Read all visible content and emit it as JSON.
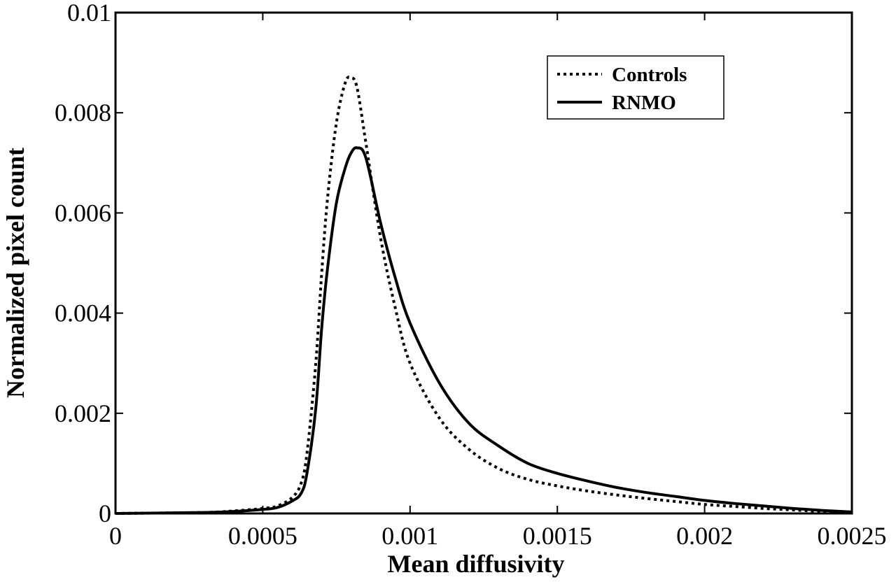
{
  "chart_data": {
    "type": "line",
    "title": "",
    "xlabel": "Mean diffusivity",
    "ylabel": "Normalized pixel count",
    "xlim": [
      0,
      0.0025
    ],
    "ylim": [
      0,
      0.01
    ],
    "xticks": [
      0,
      0.0005,
      0.001,
      0.0015,
      0.002,
      0.0025
    ],
    "xtick_labels": [
      "0",
      "0.0005",
      "0.001",
      "0.0015",
      "0.002",
      "0.0025"
    ],
    "yticks": [
      0,
      0.002,
      0.004,
      0.006,
      0.008,
      0.01
    ],
    "ytick_labels": [
      "0",
      "0.002",
      "0.004",
      "0.006",
      "0.008",
      "0.01"
    ],
    "grid": false,
    "legend_position": "top-right",
    "series": [
      {
        "name": "Controls",
        "style": "dotted",
        "color": "#000000",
        "x": [
          0,
          0.0003,
          0.0004,
          0.0005,
          0.00055,
          0.0006,
          0.00063,
          0.00065,
          0.00068,
          0.0007,
          0.00072,
          0.00075,
          0.00078,
          0.0008,
          0.00082,
          0.00085,
          0.0009,
          0.00095,
          0.001,
          0.0011,
          0.0012,
          0.0013,
          0.0014,
          0.0015,
          0.0016,
          0.0017,
          0.0018,
          0.0019,
          0.002,
          0.0021,
          0.0022,
          0.0023,
          0.0024,
          0.0025
        ],
        "values": [
          0,
          2e-05,
          5e-05,
          0.0001,
          0.00015,
          0.00032,
          0.0006,
          0.0012,
          0.003,
          0.0048,
          0.0063,
          0.0078,
          0.0086,
          0.0087,
          0.0085,
          0.0074,
          0.0055,
          0.0041,
          0.003,
          0.0019,
          0.00128,
          0.0009,
          0.00068,
          0.00055,
          0.00045,
          0.00037,
          0.0003,
          0.00024,
          0.00018,
          0.00014,
          0.0001,
          7e-05,
          4e-05,
          2e-05
        ]
      },
      {
        "name": "RNMO",
        "style": "solid",
        "color": "#000000",
        "x": [
          0,
          0.0003,
          0.0004,
          0.0005,
          0.00055,
          0.0006,
          0.00063,
          0.00065,
          0.00068,
          0.0007,
          0.00072,
          0.00075,
          0.00078,
          0.0008,
          0.00082,
          0.00085,
          0.0009,
          0.00095,
          0.001,
          0.0011,
          0.0012,
          0.0013,
          0.0014,
          0.0015,
          0.0016,
          0.0017,
          0.0018,
          0.0019,
          0.002,
          0.0021,
          0.0022,
          0.0023,
          0.0024,
          0.0025
        ],
        "values": [
          0,
          2e-05,
          4e-05,
          8e-05,
          0.00012,
          0.00025,
          0.0004,
          0.0008,
          0.0021,
          0.0037,
          0.0049,
          0.0062,
          0.0069,
          0.0072,
          0.0073,
          0.0071,
          0.0058,
          0.0047,
          0.0038,
          0.0026,
          0.0018,
          0.00135,
          0.001,
          0.0008,
          0.00065,
          0.00052,
          0.00042,
          0.00034,
          0.00026,
          0.0002,
          0.00015,
          0.0001,
          6e-05,
          3e-05
        ]
      }
    ]
  }
}
